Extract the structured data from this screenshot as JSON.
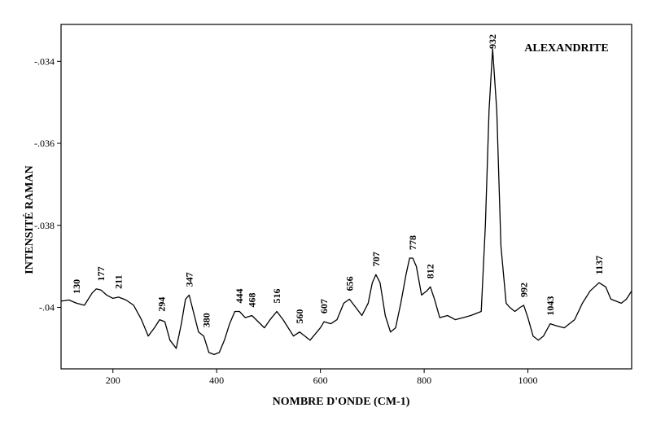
{
  "chart_data": {
    "type": "line",
    "title": "ALEXANDRITE",
    "xlabel": "NOMBRE D'ONDE (CM-1)",
    "ylabel": "INTENSITÉ RAMAN",
    "xlim": [
      100,
      1200
    ],
    "ylim": [
      -0.0415,
      -0.0331
    ],
    "x_ticks": [
      200,
      400,
      600,
      800,
      1000
    ],
    "x_tick_labels": [
      "200",
      "400",
      "600",
      "800",
      "1000"
    ],
    "y_ticks": [
      -0.034,
      -0.036,
      -0.038,
      -0.04
    ],
    "y_tick_labels": [
      "-.034",
      "-.036",
      "-.038",
      "-.04"
    ],
    "grid": false,
    "peak_labels": [
      "130",
      "177",
      "211",
      "294",
      "347",
      "380",
      "444",
      "468",
      "516",
      "560",
      "607",
      "656",
      "707",
      "778",
      "812",
      "932",
      "992",
      "1043",
      "1137"
    ],
    "peak_label_values": [
      130,
      177,
      211,
      294,
      347,
      380,
      444,
      468,
      516,
      560,
      607,
      656,
      707,
      778,
      812,
      932,
      992,
      1043,
      1137
    ],
    "series": [
      {
        "x": [
          100,
          115,
          130,
          145,
          160,
          168,
          177,
          188,
          200,
          211,
          225,
          240,
          255,
          268,
          280,
          290,
          300,
          310,
          322,
          332,
          340,
          347,
          355,
          365,
          375,
          385,
          395,
          405,
          415,
          425,
          435,
          444,
          455,
          468,
          480,
          492,
          503,
          516,
          528,
          538,
          548,
          560,
          570,
          580,
          590,
          600,
          607,
          620,
          632,
          645,
          656,
          668,
          680,
          692,
          700,
          707,
          715,
          725,
          735,
          745,
          755,
          765,
          772,
          778,
          785,
          795,
          805,
          812,
          820,
          830,
          845,
          860,
          875,
          890,
          900,
          910,
          918,
          925,
          932,
          940,
          948,
          958,
          965,
          975,
          985,
          992,
          1000,
          1010,
          1020,
          1030,
          1043,
          1055,
          1070,
          1090,
          1105,
          1120,
          1137,
          1150,
          1160,
          1170,
          1180,
          1190,
          1200
        ],
        "y": [
          -0.03985,
          -0.03982,
          -0.0399,
          -0.03995,
          -0.03965,
          -0.03955,
          -0.03958,
          -0.0397,
          -0.03978,
          -0.03975,
          -0.03982,
          -0.03995,
          -0.0403,
          -0.0407,
          -0.0405,
          -0.0403,
          -0.04035,
          -0.0408,
          -0.041,
          -0.0404,
          -0.0398,
          -0.0397,
          -0.0401,
          -0.0406,
          -0.0407,
          -0.0411,
          -0.04115,
          -0.0411,
          -0.0408,
          -0.0404,
          -0.0401,
          -0.0401,
          -0.04025,
          -0.0402,
          -0.04035,
          -0.0405,
          -0.0403,
          -0.0401,
          -0.0403,
          -0.0405,
          -0.0407,
          -0.0406,
          -0.0407,
          -0.0408,
          -0.04065,
          -0.0405,
          -0.04035,
          -0.0404,
          -0.0403,
          -0.0399,
          -0.0398,
          -0.04,
          -0.0402,
          -0.0399,
          -0.0394,
          -0.0392,
          -0.0394,
          -0.0402,
          -0.0406,
          -0.0405,
          -0.0399,
          -0.0392,
          -0.0388,
          -0.0388,
          -0.039,
          -0.0397,
          -0.0396,
          -0.0395,
          -0.0398,
          -0.04025,
          -0.0402,
          -0.0403,
          -0.04025,
          -0.0402,
          -0.04015,
          -0.0401,
          -0.038,
          -0.0352,
          -0.0337,
          -0.0352,
          -0.0385,
          -0.0399,
          -0.04,
          -0.0401,
          -0.04,
          -0.03995,
          -0.04025,
          -0.0407,
          -0.0408,
          -0.0407,
          -0.0404,
          -0.04045,
          -0.0405,
          -0.0403,
          -0.0399,
          -0.0396,
          -0.0394,
          -0.0395,
          -0.0398,
          -0.03985,
          -0.0399,
          -0.0398,
          -0.0396
        ]
      }
    ]
  }
}
